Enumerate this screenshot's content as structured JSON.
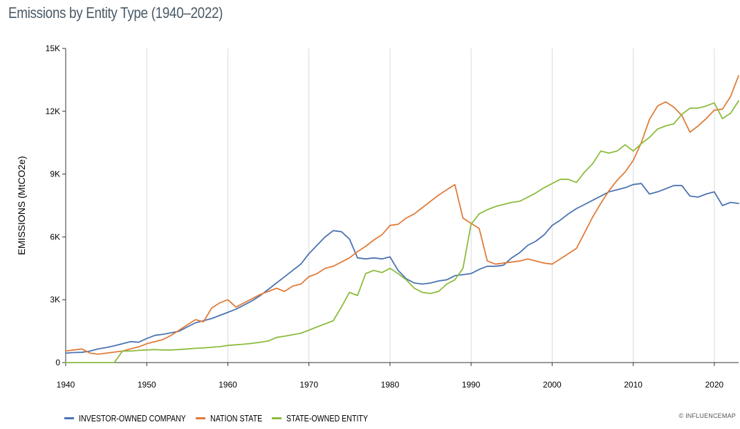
{
  "chart_data": {
    "type": "line",
    "title": "Emissions by Entity Type (1940–2022)",
    "ylabel": "EMISSIONS (MtCO2e)",
    "xlabel": "",
    "xlim": [
      1940,
      2023
    ],
    "ylim": [
      0,
      15000
    ],
    "x_ticks": [
      1940,
      1950,
      1960,
      1970,
      1980,
      1990,
      2000,
      2010,
      2020
    ],
    "y_ticks": [
      {
        "value": 0,
        "label": "0"
      },
      {
        "value": 3000,
        "label": "3K"
      },
      {
        "value": 6000,
        "label": "6K"
      },
      {
        "value": 9000,
        "label": "9K"
      },
      {
        "value": 12000,
        "label": "12K"
      },
      {
        "value": 15000,
        "label": "15K"
      }
    ],
    "grid": "vertical",
    "legend_position": "bottom-left",
    "x": [
      1940,
      1941,
      1942,
      1943,
      1944,
      1945,
      1946,
      1947,
      1948,
      1949,
      1950,
      1951,
      1952,
      1953,
      1954,
      1955,
      1956,
      1957,
      1958,
      1959,
      1960,
      1961,
      1962,
      1963,
      1964,
      1965,
      1966,
      1967,
      1968,
      1969,
      1970,
      1971,
      1972,
      1973,
      1974,
      1975,
      1976,
      1977,
      1978,
      1979,
      1980,
      1981,
      1982,
      1983,
      1984,
      1985,
      1986,
      1987,
      1988,
      1989,
      1990,
      1991,
      1992,
      1993,
      1994,
      1995,
      1996,
      1997,
      1998,
      1999,
      2000,
      2001,
      2002,
      2003,
      2004,
      2005,
      2006,
      2007,
      2008,
      2009,
      2010,
      2011,
      2012,
      2013,
      2014,
      2015,
      2016,
      2017,
      2018,
      2019,
      2020,
      2021,
      2022,
      2023
    ],
    "series": [
      {
        "name": "INVESTOR-OWNED COMPANY",
        "color": "#4a72b0",
        "values": [
          450,
          480,
          490,
          550,
          650,
          720,
          800,
          900,
          1000,
          970,
          1150,
          1300,
          1350,
          1420,
          1500,
          1700,
          1900,
          2000,
          2100,
          2250,
          2400,
          2550,
          2750,
          2950,
          3200,
          3500,
          3800,
          4100,
          4400,
          4700,
          5200,
          5600,
          6000,
          6300,
          6250,
          5900,
          5000,
          4950,
          5000,
          4950,
          5050,
          4400,
          4000,
          3800,
          3750,
          3800,
          3900,
          3950,
          4150,
          4200,
          4250,
          4450,
          4600,
          4600,
          4650,
          5000,
          5250,
          5600,
          5800,
          6100,
          6550,
          6800,
          7100,
          7350,
          7550,
          7750,
          7950,
          8150,
          8250,
          8350,
          8500,
          8550,
          8050,
          8150,
          8300,
          8450,
          8450,
          7950,
          7900,
          8050,
          8150,
          7500,
          7650,
          7600
        ]
      },
      {
        "name": "NATION STATE",
        "color": "#e07b39",
        "values": [
          550,
          600,
          650,
          450,
          400,
          450,
          500,
          550,
          650,
          750,
          900,
          1000,
          1100,
          1300,
          1550,
          1800,
          2050,
          1950,
          2600,
          2850,
          3000,
          2650,
          2850,
          3050,
          3250,
          3400,
          3550,
          3400,
          3650,
          3750,
          4100,
          4250,
          4500,
          4600,
          4800,
          5000,
          5300,
          5550,
          5850,
          6100,
          6550,
          6600,
          6900,
          7100,
          7400,
          7700,
          8000,
          8250,
          8500,
          6900,
          6650,
          6400,
          4850,
          4700,
          4750,
          4800,
          4850,
          4950,
          4850,
          4750,
          4700,
          4950,
          5200,
          5450,
          6200,
          6950,
          7600,
          8200,
          8700,
          9100,
          9650,
          10500,
          11600,
          12250,
          12450,
          12200,
          11800,
          11000,
          11300,
          11650,
          12050,
          12100,
          12700,
          13700
        ]
      },
      {
        "name": "STATE-OWNED ENTITY",
        "color": "#8cbb3c",
        "values": [
          0,
          0,
          0,
          0,
          0,
          0,
          0,
          550,
          550,
          580,
          600,
          620,
          600,
          600,
          620,
          650,
          680,
          700,
          730,
          760,
          820,
          850,
          880,
          920,
          970,
          1030,
          1200,
          1260,
          1330,
          1400,
          1550,
          1700,
          1850,
          2000,
          2650,
          3350,
          3200,
          4250,
          4400,
          4300,
          4500,
          4250,
          3950,
          3550,
          3350,
          3300,
          3400,
          3750,
          3950,
          4500,
          6600,
          7100,
          7300,
          7450,
          7550,
          7650,
          7700,
          7900,
          8100,
          8350,
          8550,
          8750,
          8750,
          8600,
          9100,
          9500,
          10100,
          10000,
          10100,
          10400,
          10100,
          10450,
          10750,
          11150,
          11300,
          11400,
          11850,
          12150,
          12150,
          12250,
          12400,
          11650,
          11900,
          12500
        ]
      }
    ],
    "credit": "© INFLUENCEMAP"
  }
}
